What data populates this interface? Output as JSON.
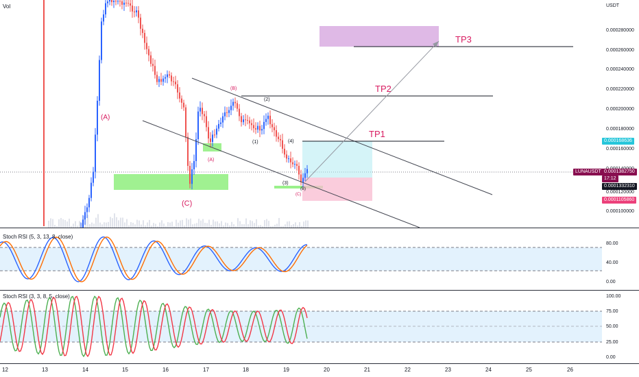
{
  "main": {
    "vol_label": "Vol",
    "currency_label": "USDT",
    "price_axis": [
      "0.000280000",
      "0.000260000",
      "0.000240000",
      "0.000220000",
      "0.000200000",
      "0.000180000",
      "0.000160000",
      "0.000140000",
      "0.000120000",
      "0.000100000"
    ],
    "wave_labels": [
      "(A)",
      "(B)",
      "(C)",
      "(A)",
      "(B)",
      "(C)",
      "(1)",
      "(2)",
      "(3)",
      "(4)",
      "(5)"
    ],
    "targets": [
      "TP1",
      "TP2",
      "TP3"
    ],
    "symbol_tag": "LUNAUSDT",
    "last_price": "0.0001382750",
    "countdown": "17:12",
    "tag_prev": "0.0001332310",
    "tag_target": "0.000168636",
    "tag_stop": "0.0001105860"
  },
  "stoch1": {
    "label": "Stoch RSI (5, 3, 13, 8, close)",
    "axis": [
      "80.00",
      "40.00",
      "0.00"
    ]
  },
  "stoch2": {
    "label": "Stoch RSI (3, 3, 8, 5, close)",
    "axis": [
      "100.00",
      "75.00",
      "50.00",
      "25.00",
      "0.00"
    ]
  },
  "dates": [
    "12",
    "13",
    "14",
    "15",
    "16",
    "17",
    "18",
    "19",
    "20",
    "21",
    "22",
    "23",
    "24",
    "25",
    "26"
  ],
  "colors": {
    "bull": "#2962ff",
    "bear": "#ef5350",
    "accent": "#d81b60",
    "k_line": "#2962ff",
    "d_line": "#ff6d00",
    "k2_line": "#4caf50",
    "d2_line": "#f23645"
  }
}
